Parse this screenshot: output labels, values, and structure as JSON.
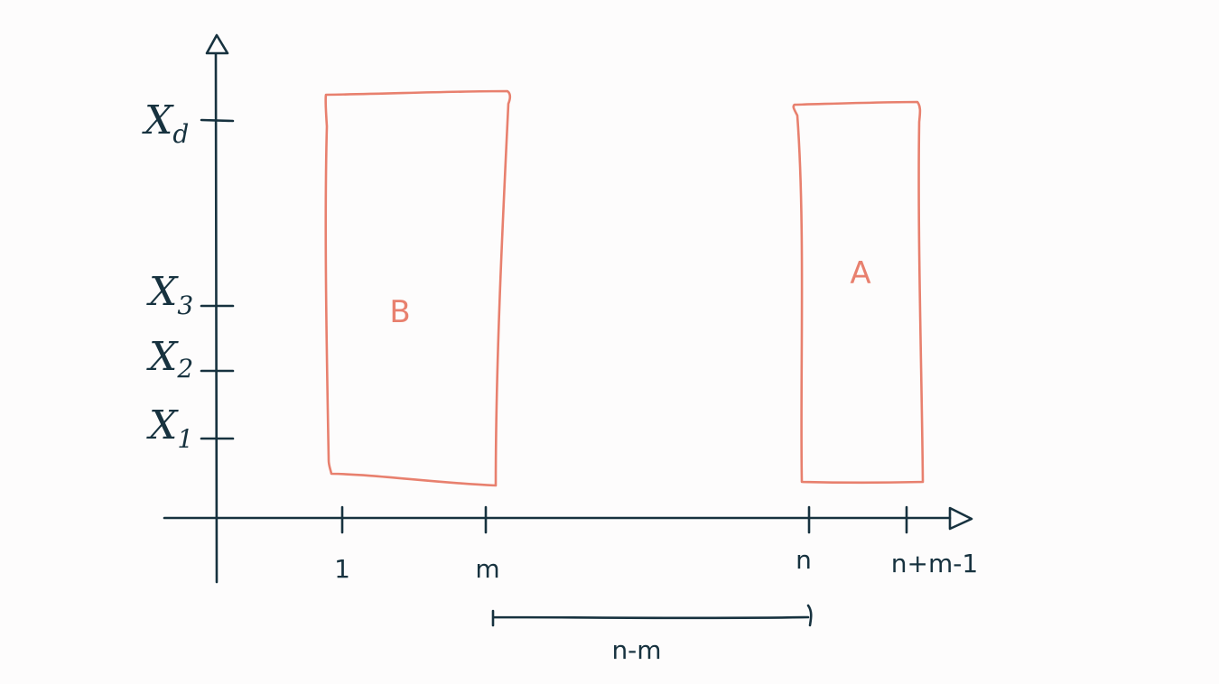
{
  "y_ticks": [
    {
      "main": "X",
      "sub": "d"
    },
    {
      "main": "X",
      "sub": "3"
    },
    {
      "main": "X",
      "sub": "2"
    },
    {
      "main": "X",
      "sub": "1"
    }
  ],
  "x_ticks": [
    "1",
    "m",
    "n",
    "n+m-1"
  ],
  "blocks": [
    {
      "label": "B"
    },
    {
      "label": "A"
    }
  ],
  "span": {
    "label": "n-m"
  },
  "colors": {
    "ink": "#17323f",
    "block": "#e8806e",
    "background": "#fdfcfc"
  }
}
